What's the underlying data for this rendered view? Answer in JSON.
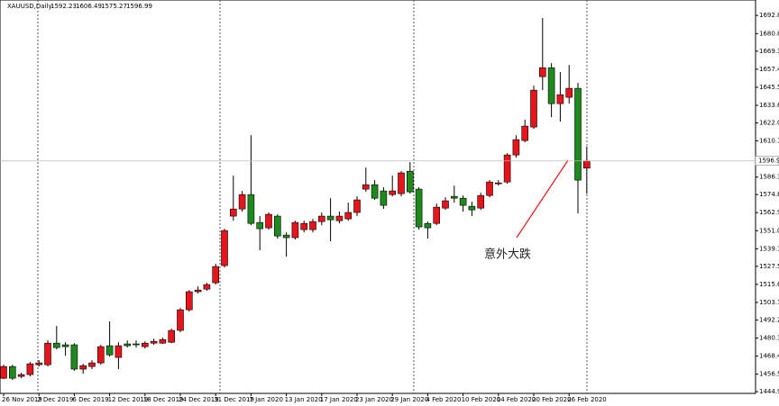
{
  "chart_data": {
    "type": "candlestick",
    "title": "XAUUSD,Daily",
    "categories": [
      "26 Nov 2019",
      null,
      null,
      null,
      "2 Dec 2019",
      null,
      null,
      null,
      "6 Dec 2019",
      null,
      null,
      null,
      "12 Dec 2019",
      null,
      null,
      null,
      "18 Dec 2019",
      null,
      null,
      null,
      "24 Dec 2019",
      null,
      null,
      null,
      "31 Dec 2019",
      null,
      null,
      null,
      "7 Jan 2020",
      null,
      null,
      null,
      "13 Jan 2020",
      null,
      null,
      null,
      "17 Jan 2020",
      null,
      null,
      null,
      "23 Jan 2020",
      null,
      null,
      null,
      "29 Jan 2020",
      null,
      null,
      null,
      "4 Feb 2020",
      null,
      null,
      null,
      "10 Feb 2020",
      null,
      null,
      null,
      "14 Feb 2020",
      null,
      null,
      null,
      "20 Feb 2020",
      null,
      null,
      null,
      "26 Feb 2020",
      null,
      null
    ],
    "open": [
      1453.8,
      1461.5,
      1455.0,
      1456.2,
      1462.7,
      1462.7,
      1476.9,
      1475.8,
      1475.8,
      1459.8,
      1461.5,
      1463.9,
      1475.2,
      1467.5,
      1476.4,
      1476.4,
      1474.6,
      1476.9,
      1476.9,
      1477.5,
      1485.3,
      1498.9,
      1510.8,
      1512.5,
      1516.7,
      1528.0,
      1560.6,
      1565.3,
      1574.8,
      1556.4,
      1552.9,
      1560.6,
      1548.1,
      1546.4,
      1551.7,
      1551.7,
      1557.0,
      1560.6,
      1557.6,
      1558.8,
      1563.0,
      1578.4,
      1581.3,
      1577.2,
      1574.8,
      1575.4,
      1590.2,
      1578.4,
      1555.8,
      1555.8,
      1565.9,
      1573.6,
      1572.4,
      1567.1,
      1565.9,
      1574.2,
      1581.9,
      1583.1,
      1600.9,
      1610.4,
      1619.3,
      1652.5,
      1658.4,
      1634.7,
      1638.9,
      1644.8,
      1592.23
    ],
    "high": [
      1462.7,
      1462.7,
      1457.4,
      1464.5,
      1465.7,
      1478.7,
      1488.2,
      1477.5,
      1476.9,
      1463.3,
      1465.7,
      1475.8,
      1491.2,
      1477.5,
      1478.7,
      1478.7,
      1478.1,
      1479.9,
      1480.5,
      1486.4,
      1500.1,
      1511.9,
      1514.3,
      1516.7,
      1529.2,
      1552.3,
      1587.3,
      1577.2,
      1613.9,
      1560.6,
      1563.0,
      1561.8,
      1549.9,
      1557.6,
      1557.6,
      1558.8,
      1563.0,
      1572.4,
      1563.6,
      1569.5,
      1573.6,
      1592.6,
      1584.3,
      1579.6,
      1587.3,
      1590.2,
      1596.2,
      1579.6,
      1557.0,
      1568.9,
      1573.0,
      1580.7,
      1574.2,
      1570.1,
      1576.0,
      1584.3,
      1584.3,
      1602.1,
      1613.9,
      1624.1,
      1646.6,
      1691.1,
      1661.4,
      1655.5,
      1660.2,
      1648.4,
      1606.49
    ],
    "low": [
      1453.2,
      1452.7,
      1453.8,
      1455.0,
      1461.5,
      1461.5,
      1472.8,
      1468.6,
      1458.6,
      1456.8,
      1459.8,
      1462.7,
      1468.1,
      1459.8,
      1474.0,
      1474.0,
      1473.4,
      1475.8,
      1476.4,
      1476.9,
      1484.1,
      1497.7,
      1509.6,
      1511.4,
      1515.5,
      1526.8,
      1557.6,
      1563.6,
      1554.6,
      1538.1,
      1551.7,
      1545.8,
      1533.9,
      1545.2,
      1549.9,
      1549.9,
      1554.6,
      1544.0,
      1555.8,
      1557.6,
      1560.6,
      1576.6,
      1571.3,
      1565.3,
      1573.6,
      1573.6,
      1575.4,
      1551.7,
      1545.8,
      1554.6,
      1564.7,
      1569.5,
      1563.6,
      1560.6,
      1564.7,
      1573.0,
      1580.7,
      1581.9,
      1599.1,
      1609.2,
      1618.1,
      1643.6,
      1625.8,
      1622.9,
      1634.7,
      1562.4,
      1575.27
    ],
    "close": [
      1461.5,
      1453.8,
      1456.2,
      1463.3,
      1463.9,
      1476.9,
      1474.0,
      1474.6,
      1459.8,
      1462.1,
      1463.9,
      1474.6,
      1469.2,
      1475.2,
      1475.2,
      1475.8,
      1476.9,
      1478.1,
      1479.3,
      1485.3,
      1498.9,
      1510.8,
      1511.9,
      1515.5,
      1527.4,
      1551.1,
      1565.3,
      1574.8,
      1555.8,
      1552.3,
      1561.8,
      1547.5,
      1546.4,
      1556.4,
      1555.8,
      1557.0,
      1560.6,
      1558.2,
      1560.6,
      1563.0,
      1571.3,
      1581.3,
      1572.4,
      1567.7,
      1577.2,
      1589.1,
      1576.6,
      1553.5,
      1552.9,
      1566.5,
      1570.7,
      1572.4,
      1567.7,
      1564.7,
      1574.2,
      1583.1,
      1582.5,
      1600.9,
      1611.0,
      1619.9,
      1643.6,
      1658.4,
      1634.7,
      1640.6,
      1644.8,
      1584.3,
      1596.99
    ],
    "up_color": "#e8141c",
    "down_color": "#1e8a1e",
    "ylim": [
      1443.8,
      1703.0
    ],
    "yticks": [
      1692.85,
      1680.85,
      {
        "value": 1669.3,
        "label": "1669.30"
      },
      {
        "value": 1657.4,
        "label": "1657.40"
      },
      {
        "value": 1645.5,
        "label": "1645.50"
      },
      {
        "value": 1633.6,
        "label": "1633.60"
      },
      1622.05,
      1610.15,
      1586.35,
      {
        "value": 1574.8,
        "label": "1574.80"
      },
      {
        "value": 1562.9,
        "label": "1562.90"
      },
      {
        "value": 1551,
        "label": "1551.00"
      },
      {
        "value": 1539.1,
        "label": "1539.10"
      },
      1527.55,
      1515.65,
      1503.75,
      {
        "value": 1492.2,
        "label": "1492.20"
      },
      {
        "value": 1480.3,
        "label": "1480.30"
      },
      {
        "value": 1468.4,
        "label": "1468.40"
      },
      {
        "value": 1456.5,
        "label": "1456.50"
      },
      1444.95
    ],
    "annotation": "意外大跌"
  }
}
